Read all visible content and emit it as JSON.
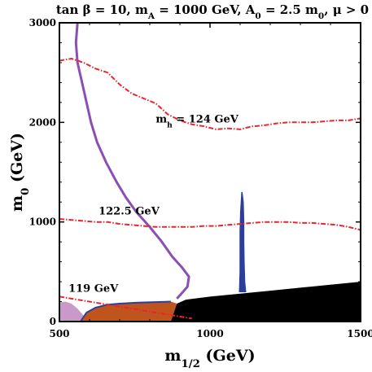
{
  "chart_data": {
    "type": "line",
    "title_parts": [
      "tan ",
      "β",
      " = 10, m",
      "A",
      " = 1000 GeV, A",
      "0",
      " = 2.5 m",
      "0",
      ", ",
      "μ",
      " > 0"
    ],
    "xlabel_parts": [
      "m",
      "1/2",
      " (GeV)"
    ],
    "ylabel_parts": [
      "m",
      "0",
      " (GeV)"
    ],
    "xlim": [
      500,
      1500
    ],
    "ylim": [
      0,
      3000
    ],
    "x_ticks": [
      500,
      1000,
      1500
    ],
    "y_ticks": [
      0,
      1000,
      2000,
      3000
    ],
    "x_tick_labels": [
      "500",
      "1000",
      "1500"
    ],
    "y_tick_labels": [
      "0",
      "1000",
      "2000",
      "3000"
    ],
    "grid": false,
    "colors": {
      "higgs_contour": "#e8262c",
      "violet_boundary": "#8a4fb5",
      "blue_strip": "#2b3f9a",
      "black_region": "#000000",
      "brown_region": "#c0541f",
      "pink_region": "#c99ac9"
    },
    "higgs_contours": [
      {
        "label_parts": [
          "m",
          "h",
          "  = 124 GeV"
        ],
        "label_at": [
          820,
          2000
        ],
        "points": [
          [
            500,
            2620
          ],
          [
            540,
            2640
          ],
          [
            580,
            2600
          ],
          [
            620,
            2540
          ],
          [
            660,
            2500
          ],
          [
            700,
            2380
          ],
          [
            740,
            2290
          ],
          [
            780,
            2240
          ],
          [
            820,
            2190
          ],
          [
            860,
            2080
          ],
          [
            900,
            2020
          ],
          [
            940,
            1980
          ],
          [
            980,
            1960
          ],
          [
            1020,
            1930
          ],
          [
            1060,
            1940
          ],
          [
            1100,
            1930
          ],
          [
            1140,
            1960
          ],
          [
            1180,
            1970
          ],
          [
            1220,
            1990
          ],
          [
            1260,
            2000
          ],
          [
            1300,
            2000
          ],
          [
            1340,
            2000
          ],
          [
            1380,
            2010
          ],
          [
            1420,
            2020
          ],
          [
            1460,
            2020
          ],
          [
            1500,
            2040
          ]
        ]
      },
      {
        "label_parts": [
          "122.5 GeV"
        ],
        "label_at": [
          630,
          1075
        ],
        "points": [
          [
            500,
            1030
          ],
          [
            540,
            1020
          ],
          [
            580,
            1010
          ],
          [
            620,
            1000
          ],
          [
            660,
            1000
          ],
          [
            700,
            980
          ],
          [
            740,
            970
          ],
          [
            780,
            960
          ],
          [
            820,
            950
          ],
          [
            860,
            950
          ],
          [
            900,
            950
          ],
          [
            940,
            950
          ],
          [
            980,
            960
          ],
          [
            1020,
            960
          ],
          [
            1060,
            970
          ],
          [
            1100,
            980
          ],
          [
            1140,
            990
          ],
          [
            1180,
            1000
          ],
          [
            1220,
            1000
          ],
          [
            1260,
            1000
          ],
          [
            1300,
            990
          ],
          [
            1340,
            990
          ],
          [
            1380,
            980
          ],
          [
            1420,
            970
          ],
          [
            1460,
            950
          ],
          [
            1500,
            920
          ]
        ]
      },
      {
        "label_parts": [
          "119 GeV"
        ],
        "label_at": [
          530,
          300
        ],
        "points": [
          [
            500,
            250
          ],
          [
            540,
            230
          ],
          [
            580,
            210
          ],
          [
            620,
            190
          ],
          [
            660,
            170
          ],
          [
            700,
            150
          ],
          [
            740,
            130
          ],
          [
            780,
            110
          ],
          [
            820,
            90
          ],
          [
            860,
            70
          ],
          [
            900,
            50
          ],
          [
            940,
            30
          ]
        ]
      }
    ],
    "violet_boundary": [
      [
        560,
        3000
      ],
      [
        555,
        2800
      ],
      [
        560,
        2600
      ],
      [
        575,
        2400
      ],
      [
        590,
        2200
      ],
      [
        605,
        2000
      ],
      [
        625,
        1800
      ],
      [
        655,
        1600
      ],
      [
        690,
        1400
      ],
      [
        720,
        1250
      ],
      [
        755,
        1100
      ],
      [
        800,
        950
      ],
      [
        840,
        800
      ],
      [
        875,
        650
      ],
      [
        905,
        550
      ],
      [
        930,
        450
      ],
      [
        925,
        350
      ],
      [
        905,
        280
      ],
      [
        890,
        230
      ]
    ],
    "blue_strip": [
      [
        1098,
        300
      ],
      [
        1100,
        500
      ],
      [
        1100,
        700
      ],
      [
        1100,
        900
      ],
      [
        1102,
        1100
      ],
      [
        1106,
        1300
      ],
      [
        1110,
        1200
      ],
      [
        1112,
        1000
      ],
      [
        1112,
        800
      ],
      [
        1113,
        600
      ],
      [
        1115,
        400
      ],
      [
        1118,
        300
      ]
    ],
    "black_region": [
      [
        870,
        0
      ],
      [
        890,
        180
      ],
      [
        920,
        220
      ],
      [
        1000,
        250
      ],
      [
        1100,
        280
      ],
      [
        1200,
        310
      ],
      [
        1300,
        340
      ],
      [
        1400,
        370
      ],
      [
        1500,
        400
      ],
      [
        1500,
        0
      ]
    ],
    "brown_region": [
      [
        570,
        0
      ],
      [
        590,
        90
      ],
      [
        620,
        140
      ],
      [
        660,
        170
      ],
      [
        700,
        180
      ],
      [
        760,
        190
      ],
      [
        820,
        195
      ],
      [
        870,
        200
      ],
      [
        890,
        180
      ],
      [
        870,
        0
      ]
    ],
    "pink_region": [
      [
        500,
        0
      ],
      [
        500,
        190
      ],
      [
        520,
        200
      ],
      [
        540,
        180
      ],
      [
        560,
        130
      ],
      [
        580,
        60
      ],
      [
        590,
        0
      ]
    ]
  }
}
